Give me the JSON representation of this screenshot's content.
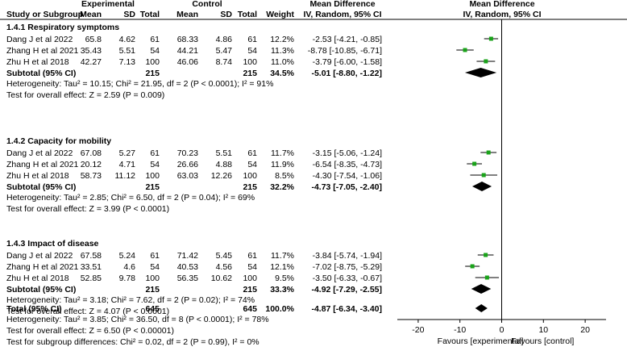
{
  "headers": {
    "experimental": "Experimental",
    "control": "Control",
    "mean_difference": "Mean Difference",
    "study": "Study or Subgroup",
    "mean_e": "Mean",
    "sd_e": "SD",
    "total_e": "Total",
    "mean_c": "Mean",
    "sd_c": "SD",
    "total_c": "Total",
    "weight": "Weight",
    "ci": "IV, Random, 95% CI",
    "plot_title": "Mean Difference",
    "plot_sub": "IV, Random, 95% CI"
  },
  "colors": {
    "marker": "#1aa31a",
    "diamond": "#000000"
  },
  "groups": [
    {
      "title": "1.4.1 Respiratory symptoms",
      "studies": [
        {
          "name": "Dang J et al 2022",
          "me": "65.8",
          "sde": "4.62",
          "te": "61",
          "mc": "68.33",
          "sdc": "4.86",
          "tc": "61",
          "w": "12.2%",
          "ci": "-2.53 [-4.21, -0.85]",
          "md": -2.53,
          "lo": -4.21,
          "hi": -0.85
        },
        {
          "name": "Zhang H et al 2021",
          "me": "35.43",
          "sde": "5.51",
          "te": "54",
          "mc": "44.21",
          "sdc": "5.47",
          "tc": "54",
          "w": "11.3%",
          "ci": "-8.78 [-10.85, -6.71]",
          "md": -8.78,
          "lo": -10.85,
          "hi": -6.71
        },
        {
          "name": "Zhu H et al 2018",
          "me": "42.27",
          "sde": "7.13",
          "te": "100",
          "mc": "46.06",
          "sdc": "8.74",
          "tc": "100",
          "w": "11.0%",
          "ci": "-3.79 [-6.00, -1.58]",
          "md": -3.79,
          "lo": -6.0,
          "hi": -1.58
        }
      ],
      "subtotal": {
        "label": "Subtotal (95% CI)",
        "te": "215",
        "tc": "215",
        "w": "34.5%",
        "ci": "-5.01 [-8.80, -1.22]",
        "md": -5.01,
        "lo": -8.8,
        "hi": -1.22
      },
      "heterogeneity": "Heterogeneity: Tau² = 10.15; Chi² = 21.95, df = 2 (P < 0.0001); I² = 91%",
      "overall": "Test for overall effect: Z = 2.59 (P = 0.009)"
    },
    {
      "title": "1.4.2 Capacity for mobility",
      "studies": [
        {
          "name": "Dang J et al 2022",
          "me": "67.08",
          "sde": "5.27",
          "te": "61",
          "mc": "70.23",
          "sdc": "5.51",
          "tc": "61",
          "w": "11.7%",
          "ci": "-3.15 [-5.06, -1.24]",
          "md": -3.15,
          "lo": -5.06,
          "hi": -1.24
        },
        {
          "name": "Zhang H et al 2021",
          "me": "20.12",
          "sde": "4.71",
          "te": "54",
          "mc": "26.66",
          "sdc": "4.88",
          "tc": "54",
          "w": "11.9%",
          "ci": "-6.54 [-8.35, -4.73]",
          "md": -6.54,
          "lo": -8.35,
          "hi": -4.73
        },
        {
          "name": "Zhu H et al 2018",
          "me": "58.73",
          "sde": "11.12",
          "te": "100",
          "mc": "63.03",
          "sdc": "12.26",
          "tc": "100",
          "w": "8.5%",
          "ci": "-4.30 [-7.54, -1.06]",
          "md": -4.3,
          "lo": -7.54,
          "hi": -1.06
        }
      ],
      "subtotal": {
        "label": "Subtotal (95% CI)",
        "te": "215",
        "tc": "215",
        "w": "32.2%",
        "ci": "-4.73 [-7.05, -2.40]",
        "md": -4.73,
        "lo": -7.05,
        "hi": -2.4
      },
      "heterogeneity": "Heterogeneity: Tau² = 2.85; Chi² = 6.50, df = 2 (P = 0.04); I² = 69%",
      "overall": "Test for overall effect: Z = 3.99 (P < 0.0001)"
    },
    {
      "title": "1.4.3 Impact of disease",
      "studies": [
        {
          "name": "Dang J et al 2022",
          "me": "67.58",
          "sde": "5.24",
          "te": "61",
          "mc": "71.42",
          "sdc": "5.45",
          "tc": "61",
          "w": "11.7%",
          "ci": "-3.84 [-5.74, -1.94]",
          "md": -3.84,
          "lo": -5.74,
          "hi": -1.94
        },
        {
          "name": "Zhang H et al 2021",
          "me": "33.51",
          "sde": "4.6",
          "te": "54",
          "mc": "40.53",
          "sdc": "4.56",
          "tc": "54",
          "w": "12.1%",
          "ci": "-7.02 [-8.75, -5.29]",
          "md": -7.02,
          "lo": -8.75,
          "hi": -5.29
        },
        {
          "name": "Zhu H et al 2018",
          "me": "52.85",
          "sde": "9.78",
          "te": "100",
          "mc": "56.35",
          "sdc": "10.62",
          "tc": "100",
          "w": "9.5%",
          "ci": "-3.50 [-6.33, -0.67]",
          "md": -3.5,
          "lo": -6.33,
          "hi": -0.67
        }
      ],
      "subtotal": {
        "label": "Subtotal (95% CI)",
        "te": "215",
        "tc": "215",
        "w": "33.3%",
        "ci": "-4.92 [-7.29, -2.55]",
        "md": -4.92,
        "lo": -7.29,
        "hi": -2.55
      },
      "heterogeneity": "Heterogeneity: Tau² = 3.18; Chi² = 7.62, df = 2 (P = 0.02); I² = 74%",
      "overall": "Test for overall effect: Z = 4.07 (P < 0.0001)"
    }
  ],
  "total": {
    "label": "Total (95% CI)",
    "te": "645",
    "tc": "645",
    "w": "100.0%",
    "ci": "-4.87 [-6.34, -3.40]",
    "md": -4.87,
    "lo": -6.34,
    "hi": -3.4,
    "heterogeneity": "Heterogeneity: Tau² = 3.85; Chi² = 36.50, df = 8 (P < 0.0001); I² = 78%",
    "overall": "Test for overall effect: Z = 6.50 (P < 0.00001)",
    "subgroup": "Test for subgroup differences: Chi² = 0.02, df = 2 (P = 0.99), I² = 0%"
  },
  "chart_data": {
    "type": "forest",
    "title": "Mean Difference",
    "subtitle": "IV, Random, 95% CI",
    "x_range": [
      -25,
      25
    ],
    "ticks": [
      -20,
      -10,
      0,
      10,
      20
    ],
    "tick_labels": [
      "-20",
      "-10",
      "0",
      "10",
      "20"
    ],
    "left_label": "Favours [experimental]",
    "right_label": "Favours [control]"
  }
}
